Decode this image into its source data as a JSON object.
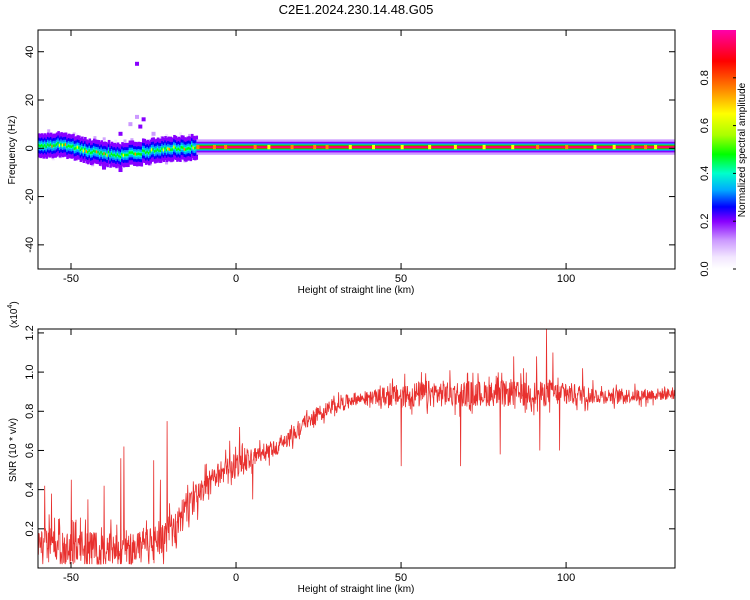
{
  "title": "C2E1.2024.230.14.48.G05",
  "chart_data": [
    {
      "type": "heatmap",
      "xlabel": "Height of straight line (km)",
      "ylabel": "Frequency (Hz)",
      "xlim": [
        -60,
        133
      ],
      "ylim": [
        -50,
        49
      ],
      "xticks": [
        -50,
        0,
        50,
        100
      ],
      "yticks": [
        -40,
        -20,
        0,
        20,
        40
      ],
      "colorbar": {
        "label": "Normalized spectral amplitude",
        "range": [
          0.0,
          1.0
        ],
        "ticks": [
          "0.0",
          "0.2",
          "0.4",
          "0.6",
          "0.8"
        ],
        "tick_values": [
          0.0,
          0.2,
          0.4,
          0.6,
          0.8
        ],
        "colors": [
          "#f2e6ff",
          "#cc99ff",
          "#8800ff",
          "#0000ff",
          "#00aaff",
          "#00ffcc",
          "#00ff00",
          "#aaff00",
          "#ffff00",
          "#ff8800",
          "#ff0000",
          "#ff00aa"
        ]
      },
      "band_center_hz": [
        [
          -60,
          1
        ],
        [
          -55,
          1.5
        ],
        [
          -50,
          0.5
        ],
        [
          -45,
          -1
        ],
        [
          -40,
          -2
        ],
        [
          -35,
          -3
        ],
        [
          -30,
          -2
        ],
        [
          -25,
          -1
        ],
        [
          -20,
          0
        ],
        [
          -15,
          0
        ],
        [
          -12,
          0.5
        ],
        [
          0,
          0.5
        ],
        [
          50,
          0.5
        ],
        [
          100,
          0.5
        ],
        [
          133,
          0.5
        ]
      ],
      "scattered_points": [
        [
          -30,
          35
        ],
        [
          -30,
          13
        ],
        [
          -28,
          12
        ],
        [
          -32,
          10
        ],
        [
          -29,
          9
        ],
        [
          -25,
          6
        ],
        [
          -20,
          4
        ],
        [
          -35,
          6
        ],
        [
          -40,
          -8
        ],
        [
          -35,
          -9
        ]
      ]
    },
    {
      "type": "line",
      "xlabel": "Height of straight line (km)",
      "ylabel": "SNR (10 * v/v)",
      "yscale_note": "(x10",
      "yscale_exp": "4",
      "xlim": [
        -60,
        133
      ],
      "ylim": [
        0.0,
        1.22
      ],
      "xticks": [
        -50,
        0,
        50,
        100
      ],
      "yticks": [
        "0.2",
        "0.4",
        "0.6",
        "0.8",
        "1.0",
        "1.2"
      ],
      "ytick_values": [
        0.2,
        0.4,
        0.6,
        0.8,
        1.0,
        1.2
      ],
      "color": "#e8302e",
      "trend": {
        "x": [
          -60,
          -50,
          -40,
          -30,
          -25,
          -20,
          -15,
          -10,
          -5,
          0,
          5,
          10,
          15,
          20,
          25,
          30,
          35,
          40,
          50,
          60,
          70,
          80,
          90,
          100,
          110,
          120,
          133
        ],
        "y": [
          0.13,
          0.1,
          0.09,
          0.11,
          0.12,
          0.18,
          0.3,
          0.4,
          0.48,
          0.53,
          0.56,
          0.6,
          0.65,
          0.73,
          0.79,
          0.83,
          0.86,
          0.87,
          0.88,
          0.89,
          0.89,
          0.89,
          0.89,
          0.89,
          0.88,
          0.88,
          0.89
        ]
      },
      "noise_amp": {
        "x": [
          -60,
          -20,
          -15,
          0,
          20,
          40,
          45,
          55,
          100,
          110,
          133
        ],
        "a": [
          0.09,
          0.09,
          0.07,
          0.06,
          0.04,
          0.03,
          0.05,
          0.07,
          0.06,
          0.04,
          0.03
        ]
      },
      "spikes": [
        [
          -58,
          0.42
        ],
        [
          -56,
          0.38
        ],
        [
          -50,
          0.45
        ],
        [
          -45,
          0.35
        ],
        [
          -40,
          0.42
        ],
        [
          -35,
          0.56
        ],
        [
          -34,
          0.62
        ],
        [
          -25,
          0.55
        ],
        [
          -21,
          0.75
        ],
        [
          -23,
          0.45
        ],
        [
          -2,
          0.65
        ],
        [
          1,
          0.72
        ],
        [
          5,
          0.35
        ],
        [
          50,
          0.52
        ],
        [
          68,
          0.52
        ],
        [
          80,
          0.58
        ],
        [
          84,
          1.08
        ],
        [
          87,
          1.02
        ],
        [
          91,
          1.08
        ],
        [
          92,
          0.6
        ],
        [
          94,
          1.22
        ],
        [
          96,
          1.1
        ],
        [
          98,
          0.6
        ],
        [
          105,
          1.02
        ]
      ]
    }
  ]
}
